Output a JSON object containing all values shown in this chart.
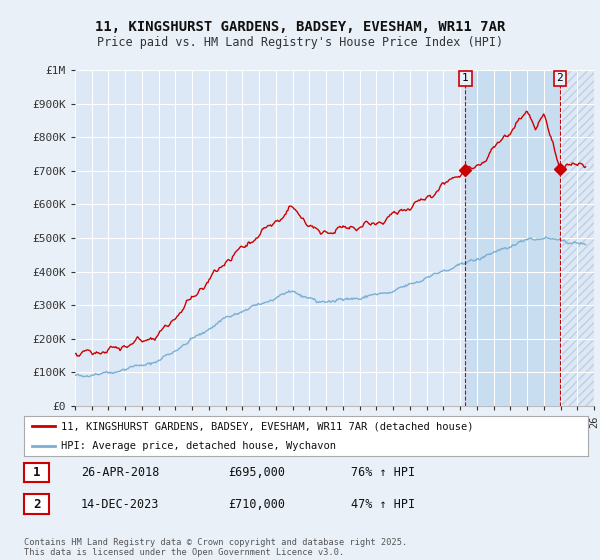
{
  "title_line1": "11, KINGSHURST GARDENS, BADSEY, EVESHAM, WR11 7AR",
  "title_line2": "Price paid vs. HM Land Registry's House Price Index (HPI)",
  "ylabel_ticks": [
    "£0",
    "£100K",
    "£200K",
    "£300K",
    "£400K",
    "£500K",
    "£600K",
    "£700K",
    "£800K",
    "£900K",
    "£1M"
  ],
  "ytick_values": [
    0,
    100000,
    200000,
    300000,
    400000,
    500000,
    600000,
    700000,
    800000,
    900000,
    1000000
  ],
  "x_start_year": 1995,
  "x_end_year": 2026,
  "hpi_color": "#7bafd4",
  "price_color": "#cc0000",
  "marker1_year": 2018.32,
  "marker1_price": 695000,
  "marker2_year": 2023.95,
  "marker2_price": 710000,
  "legend_label_price": "11, KINGSHURST GARDENS, BADSEY, EVESHAM, WR11 7AR (detached house)",
  "legend_label_hpi": "HPI: Average price, detached house, Wychavon",
  "annotation1_label": "1",
  "annotation1_date": "26-APR-2018",
  "annotation1_price": "£695,000",
  "annotation1_pct": "76% ↑ HPI",
  "annotation2_label": "2",
  "annotation2_date": "14-DEC-2023",
  "annotation2_price": "£710,000",
  "annotation2_pct": "47% ↑ HPI",
  "footer": "Contains HM Land Registry data © Crown copyright and database right 2025.\nThis data is licensed under the Open Government Licence v3.0.",
  "background_color": "#eaf0f8",
  "plot_bg_color": "#dce8f5",
  "shade_between_color": "#c8ddf0",
  "hatch_color": "#c0cfe0"
}
